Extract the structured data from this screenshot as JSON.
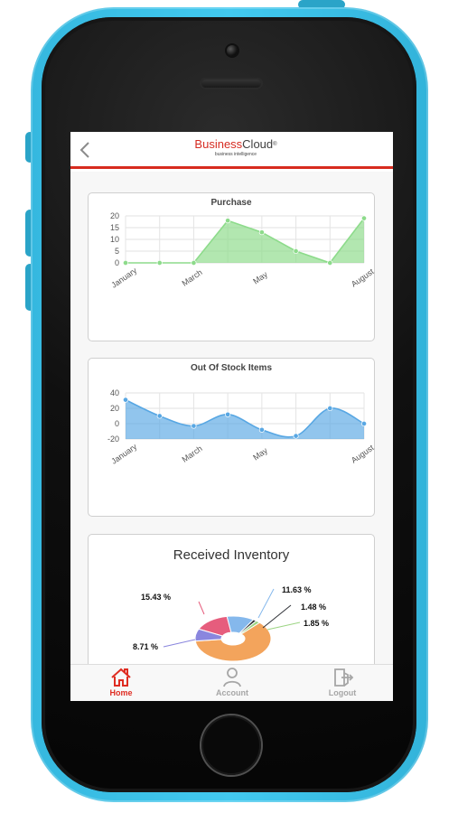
{
  "brand": {
    "name_part1": "Business",
    "name_part2": "Cloud",
    "registered": "®",
    "tagline": "business intelligence"
  },
  "tabs": [
    {
      "label": "Home",
      "icon": "home-icon",
      "active": true
    },
    {
      "label": "Account",
      "icon": "account-icon",
      "active": false
    },
    {
      "label": "Logout",
      "icon": "logout-icon",
      "active": false
    }
  ],
  "colors": {
    "accent_red": "#d72b1f",
    "case_blue": "#3fc3ea",
    "purchase_line": "#8ddb8b",
    "stock_line": "#58a7e3"
  },
  "chart_data": [
    {
      "type": "area",
      "title": "Purchase",
      "x_tick_labels": [
        "January",
        "March",
        "May",
        "August"
      ],
      "x": [
        1,
        2,
        3,
        4,
        5,
        6,
        7,
        8
      ],
      "series": [
        {
          "values": [
            0,
            0,
            0,
            18,
            13,
            5,
            0,
            19
          ]
        }
      ],
      "ylim": [
        0,
        20
      ],
      "yticks": [
        20,
        15,
        10,
        5,
        0
      ],
      "grid": true
    },
    {
      "type": "area",
      "title": "Out Of Stock Items",
      "x_tick_labels": [
        "January",
        "March",
        "May",
        "August"
      ],
      "x": [
        1,
        2,
        3,
        4,
        5,
        6,
        7,
        8
      ],
      "series": [
        {
          "values": [
            31,
            10,
            -3,
            12,
            -8,
            -16,
            20,
            0
          ]
        }
      ],
      "ylim": [
        -20,
        40
      ],
      "yticks": [
        40,
        20,
        0,
        -20
      ],
      "grid": true
    },
    {
      "type": "pie",
      "title": "Received Inventory",
      "slices": [
        {
          "label": "15.43 %",
          "value": 15.43,
          "color": "#e65d7d"
        },
        {
          "label": "11.63 %",
          "value": 11.63,
          "color": "#85b8ec"
        },
        {
          "label": "1.48 %",
          "value": 1.48,
          "color": "#2f3137"
        },
        {
          "label": "1.85 %",
          "value": 1.85,
          "color": "#9bd483"
        },
        {
          "label": "",
          "value": 61.0,
          "color": "#f3a45c"
        },
        {
          "label": "8.71 %",
          "value": 8.71,
          "color": "#8a86de"
        }
      ]
    }
  ]
}
